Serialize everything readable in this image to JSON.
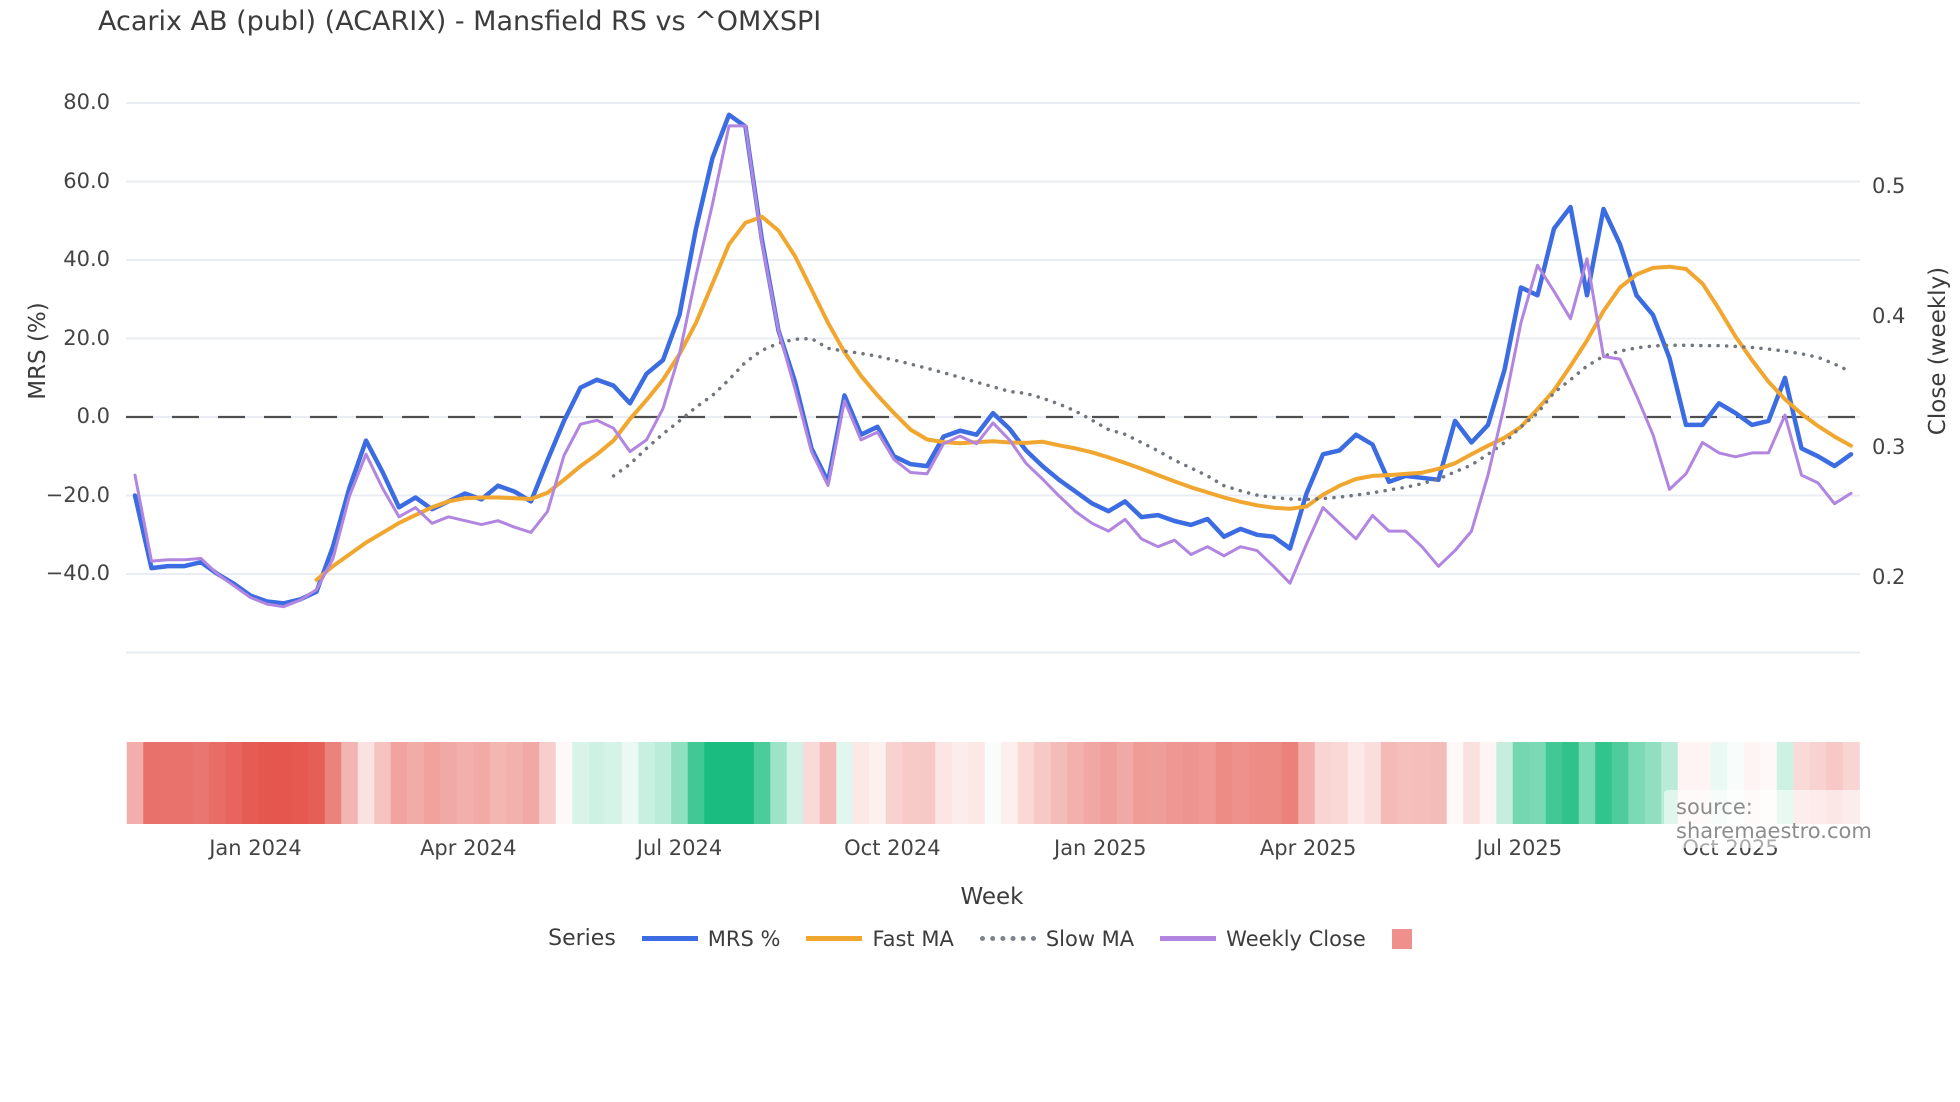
{
  "page": {
    "title": "Acarix AB (publ) (ACARIX) - Mansfield RS vs ^OMXSPI"
  },
  "axes": {
    "left": {
      "label": "MRS (%)",
      "tick_labels": [
        "80.0",
        "60.0",
        "40.0",
        "20.0",
        "0.0",
        "−20.0",
        "−40.0"
      ],
      "tick_values": [
        80,
        60,
        40,
        20,
        0,
        -20,
        -40
      ]
    },
    "right": {
      "label": "Close (weekly)",
      "tick_labels": [
        "0.5",
        "0.4",
        "0.3",
        "0.2"
      ],
      "tick_values": [
        0.5,
        0.4,
        0.3,
        0.2
      ]
    },
    "x": {
      "label": "Week",
      "tick_labels": [
        "Jan 2024",
        "Apr 2024",
        "Jul 2024",
        "Oct 2024",
        "Jan 2025",
        "Apr 2025",
        "Jul 2025",
        "Oct 2025"
      ],
      "tick_week_index": [
        7.3,
        20.2,
        33.0,
        45.9,
        58.5,
        71.1,
        83.9,
        96.7
      ]
    }
  },
  "legend": {
    "title": "Series",
    "items": [
      {
        "label": "MRS %",
        "color": "#3b6ce1",
        "style": "solid"
      },
      {
        "label": "Fast MA",
        "color": "#f0a62f",
        "style": "solid"
      },
      {
        "label": "Slow MA",
        "color": "#7d838c",
        "style": "dotted"
      },
      {
        "label": "Weekly Close",
        "color": "#b185e0",
        "style": "solid"
      },
      {
        "label": "",
        "color": "#f0908d",
        "style": "square"
      }
    ]
  },
  "source_note": "source: sharemaestro.com",
  "chart_data": {
    "type": "line",
    "x_axis": {
      "unit": "week",
      "n_points": 105,
      "visible_tick_labels": [
        "Jan 2024",
        "Apr 2024",
        "Jul 2024",
        "Oct 2024",
        "Jan 2025",
        "Apr 2025",
        "Jul 2025",
        "Oct 2025"
      ],
      "tick_week_index": [
        7.3,
        20.2,
        33.0,
        45.9,
        58.5,
        71.1,
        83.9,
        96.7
      ]
    },
    "y_left": {
      "label": "MRS (%)",
      "range_shown": [
        -48,
        80
      ],
      "gridlines": [
        80,
        60,
        40,
        20,
        0,
        -20,
        -40
      ],
      "zero_line": "dashed"
    },
    "y_right": {
      "label": "Close (weekly)",
      "ticks": [
        0.5,
        0.4,
        0.3,
        0.2
      ]
    },
    "series": [
      {
        "name": "MRS %",
        "axis": "left",
        "color": "#3b6ce1",
        "style": "solid",
        "width": 4.5,
        "values": [
          -20,
          -38.5,
          -38,
          -38,
          -37,
          -40,
          -42.5,
          -45.5,
          -47,
          -47.5,
          -46.5,
          -44.5,
          -33,
          -18,
          -6,
          -14,
          -23,
          -20.5,
          -23.5,
          -21.5,
          -19.5,
          -21,
          -17.5,
          -19,
          -21.5,
          -11,
          -1,
          7.5,
          9.5,
          8,
          3.5,
          11,
          14.5,
          26,
          48,
          66,
          77,
          74,
          45,
          22,
          9,
          -8,
          -16.5,
          5.5,
          -4.5,
          -2.5,
          -10,
          -12,
          -12.5,
          -5,
          -3.5,
          -4.5,
          1,
          -3,
          -8.5,
          -12.5,
          -16,
          -19,
          -22,
          -24,
          -21.5,
          -25.5,
          -25,
          -26.5,
          -27.5,
          -26,
          -30.5,
          -28.5,
          -30,
          -30.5,
          -33.5,
          -19.5,
          -9.5,
          -8.5,
          -4.5,
          -7,
          -16.5,
          -15,
          -15.5,
          -16,
          -1,
          -6.5,
          -2,
          12,
          33,
          31,
          48,
          53.5,
          31,
          53,
          44,
          31,
          26,
          15,
          -2,
          -2,
          3.5,
          1,
          -2,
          -1,
          10,
          -8,
          -10,
          -12.5,
          -9.5
        ]
      },
      {
        "name": "Fast MA",
        "axis": "left",
        "color": "#f0a62f",
        "style": "solid",
        "width": 4,
        "values": [
          null,
          null,
          null,
          null,
          null,
          null,
          null,
          null,
          null,
          null,
          null,
          -41.5,
          -38,
          -35,
          -32,
          -29.5,
          -27,
          -25,
          -23,
          -21.5,
          -20.7,
          -20.5,
          -20.5,
          -20.7,
          -20.9,
          -19.3,
          -16,
          -12.5,
          -9.5,
          -6,
          -0.5,
          4.3,
          9.5,
          16,
          24,
          34,
          44,
          49.5,
          51,
          47.5,
          41,
          32.5,
          24,
          16.5,
          10.5,
          5.5,
          1,
          -3.2,
          -5.7,
          -6.4,
          -6.7,
          -6.4,
          -6.2,
          -6.5,
          -6.6,
          -6.3,
          -7.2,
          -8,
          -9,
          -10.3,
          -11.7,
          -13.2,
          -14.8,
          -16.4,
          -17.9,
          -19.2,
          -20.5,
          -21.6,
          -22.5,
          -23.1,
          -23.4,
          -22.8,
          -19.8,
          -17.5,
          -15.8,
          -15,
          -14.8,
          -14.5,
          -14.2,
          -13.2,
          -11.8,
          -9.5,
          -7.3,
          -5.3,
          -2.5,
          2,
          6.8,
          13,
          19.5,
          27,
          33,
          36.3,
          38,
          38.3,
          37.7,
          34,
          27.5,
          20.5,
          14.5,
          9,
          4.5,
          0.8,
          -2.3,
          -5,
          -7.3
        ]
      },
      {
        "name": "Slow MA",
        "axis": "left",
        "color": "#70757e",
        "style": "dotted",
        "width": 3.5,
        "values": [
          null,
          null,
          null,
          null,
          null,
          null,
          null,
          null,
          null,
          null,
          null,
          null,
          null,
          null,
          null,
          null,
          null,
          null,
          null,
          null,
          null,
          null,
          null,
          null,
          null,
          null,
          null,
          null,
          null,
          -15,
          -12,
          -8,
          -4.3,
          -1,
          2.5,
          5.5,
          9.5,
          14,
          17,
          18.8,
          19.8,
          20,
          17.5,
          16.8,
          16.2,
          15.5,
          14.5,
          13.5,
          12.4,
          11.3,
          10.1,
          8.9,
          7.7,
          6.5,
          6,
          4.8,
          3.3,
          1.5,
          -0.8,
          -3.2,
          -4.4,
          -6.5,
          -8.6,
          -11,
          -13,
          -15,
          -17.5,
          -18.8,
          -19.9,
          -20.5,
          -20.9,
          -21,
          -20.8,
          -20.4,
          -19.9,
          -19.3,
          -18.6,
          -17.9,
          -17,
          -15.8,
          -14,
          -12.2,
          -9.5,
          -6.5,
          -2.5,
          1,
          6.2,
          9.5,
          13,
          15.5,
          16.8,
          17.6,
          18.1,
          18.3,
          18.3,
          18.2,
          18.2,
          18,
          17.7,
          17.3,
          16.8,
          16.1,
          15.2,
          13.5,
          11.5
        ]
      },
      {
        "name": "Weekly Close",
        "axis": "right",
        "color": "#b185e0",
        "style": "solid",
        "width": 3,
        "values": [
          0.279,
          0.213,
          0.214,
          0.214,
          0.215,
          0.203,
          0.194,
          0.185,
          0.18,
          0.178,
          0.183,
          0.191,
          0.215,
          0.263,
          0.295,
          0.269,
          0.247,
          0.254,
          0.242,
          0.247,
          0.244,
          0.241,
          0.244,
          0.239,
          0.235,
          0.251,
          0.294,
          0.318,
          0.321,
          0.315,
          0.297,
          0.306,
          0.33,
          0.372,
          0.432,
          0.487,
          0.547,
          0.547,
          0.457,
          0.39,
          0.345,
          0.297,
          0.271,
          0.336,
          0.306,
          0.312,
          0.291,
          0.281,
          0.28,
          0.303,
          0.309,
          0.303,
          0.319,
          0.306,
          0.288,
          0.276,
          0.263,
          0.251,
          0.242,
          0.236,
          0.245,
          0.23,
          0.224,
          0.229,
          0.218,
          0.224,
          0.217,
          0.224,
          0.221,
          0.209,
          0.196,
          0.226,
          0.254,
          0.242,
          0.23,
          0.248,
          0.236,
          0.236,
          0.224,
          0.209,
          0.221,
          0.236,
          0.279,
          0.333,
          0.396,
          0.44,
          0.42,
          0.399,
          0.445,
          0.37,
          0.368,
          0.34,
          0.31,
          0.268,
          0.28,
          0.304,
          0.296,
          0.293,
          0.296,
          0.296,
          0.325,
          0.279,
          0.273,
          0.257,
          0.265
        ]
      }
    ],
    "heatmap_strip": {
      "encodes": "weekly relative-strength intensity (red = negative MRS, green = positive MRS)",
      "negative_color": "#e4544c",
      "positive_color": "#1abd7f",
      "neutral_color": "#ffffff",
      "legend_swatch_color": "#f0908d"
    }
  }
}
